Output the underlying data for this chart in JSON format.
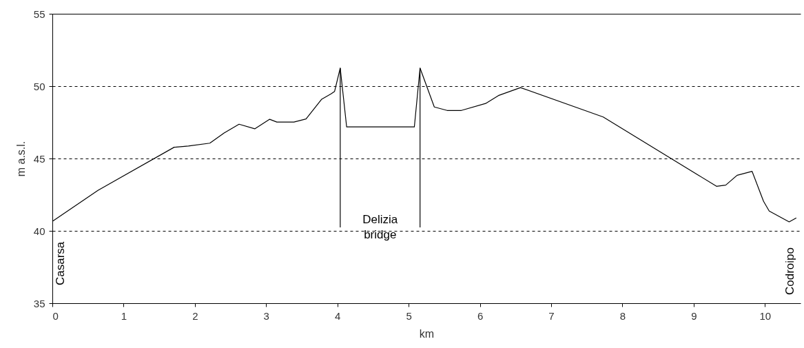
{
  "chart_data": {
    "type": "line",
    "xlabel": "km",
    "ylabel": "m a.s.l.",
    "x": [
      0.0,
      0.64,
      1.71,
      1.91,
      2.21,
      2.41,
      2.62,
      2.84,
      3.05,
      3.15,
      3.39,
      3.56,
      3.78,
      3.91,
      3.96,
      4.04,
      4.13,
      5.08,
      5.16,
      5.36,
      5.54,
      5.74,
      6.08,
      6.26,
      6.57,
      7.73,
      9.32,
      9.45,
      9.61,
      9.82,
      9.98,
      10.06,
      10.34,
      10.44
    ],
    "series": [
      {
        "color": "#000000",
        "values": [
          40.65,
          42.8,
          45.78,
          45.86,
          46.06,
          46.76,
          47.37,
          47.05,
          47.71,
          47.52,
          47.52,
          47.73,
          49.1,
          49.46,
          49.63,
          51.25,
          47.18,
          47.18,
          51.25,
          48.56,
          48.32,
          48.32,
          48.8,
          49.35,
          49.9,
          47.87,
          43.08,
          43.16,
          43.84,
          44.11,
          42.05,
          41.37,
          40.62,
          40.89
        ]
      }
    ],
    "xlim": [
      0,
      10.5
    ],
    "xticks": [
      0,
      1,
      2,
      3,
      4,
      5,
      6,
      7,
      8,
      9,
      10
    ],
    "ylim": [
      35,
      55
    ],
    "yticks": [
      35,
      40,
      45,
      50,
      55
    ],
    "grid": "y",
    "marker": "none",
    "line_style": "solid",
    "ref_lines": [
      {
        "axis": "x",
        "value": 4.04,
        "label": null
      },
      {
        "axis": "x",
        "value": 5.16,
        "label": null
      }
    ],
    "annotations": [
      "Delizia bridge",
      "Casarsa",
      "Codroipo"
    ]
  }
}
